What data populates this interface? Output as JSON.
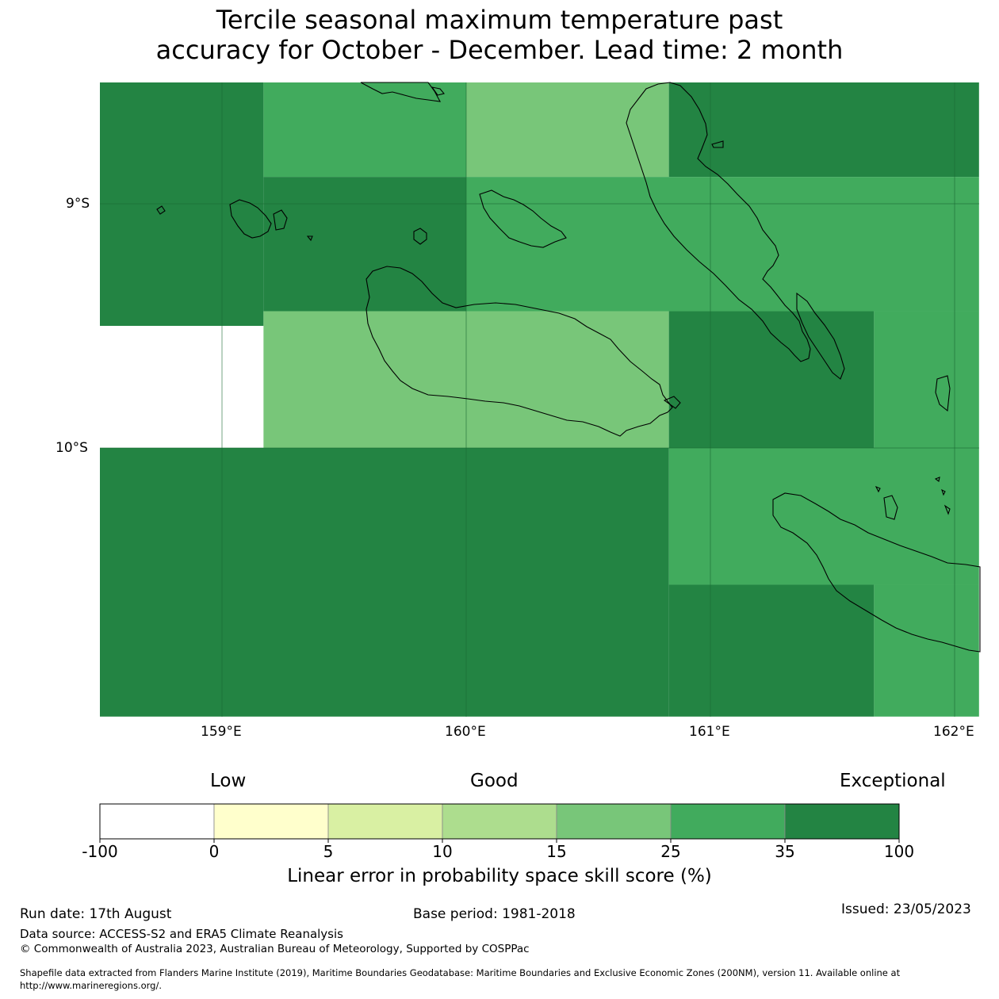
{
  "title_line1": "Tercile seasonal maximum temperature past",
  "title_line2": "accuracy for October - December. Lead time: 2 month",
  "map": {
    "lat_labels": [
      "9°S",
      "10°S"
    ],
    "lon_labels": [
      "159°E",
      "160°E",
      "161°E",
      "162°E"
    ],
    "legend_colors": {
      "lt0": "#ffffff",
      "0-5": "#ffffcc",
      "5-10": "#d9f0a3",
      "10-15": "#addd8e",
      "15-25": "#78c679",
      "25-35": "#41ab5d",
      "35-100": "#238443"
    },
    "grid_cells": [
      {
        "lon": [
          158.5,
          159.17
        ],
        "lat": [
          -8.5,
          -9.5
        ],
        "cls": "35-100"
      },
      {
        "lon": [
          159.17,
          160.0
        ],
        "lat": [
          -8.5,
          -8.89
        ],
        "cls": "25-35"
      },
      {
        "lon": [
          160.0,
          160.83
        ],
        "lat": [
          -8.5,
          -8.89
        ],
        "cls": "15-25"
      },
      {
        "lon": [
          160.83,
          162.1
        ],
        "lat": [
          -8.5,
          -8.89
        ],
        "cls": "35-100"
      },
      {
        "lon": [
          159.17,
          160.0
        ],
        "lat": [
          -8.89,
          -9.44
        ],
        "cls": "35-100"
      },
      {
        "lon": [
          160.0,
          162.1
        ],
        "lat": [
          -8.89,
          -9.44
        ],
        "cls": "25-35"
      },
      {
        "lon": [
          159.17,
          160.83
        ],
        "lat": [
          -9.44,
          -10.0
        ],
        "cls": "15-25"
      },
      {
        "lon": [
          160.83,
          161.67
        ],
        "lat": [
          -9.44,
          -10.0
        ],
        "cls": "35-100"
      },
      {
        "lon": [
          161.67,
          162.1
        ],
        "lat": [
          -9.44,
          -10.0
        ],
        "cls": "25-35"
      },
      {
        "lon": [
          158.5,
          160.83
        ],
        "lat": [
          -10.0,
          -11.1
        ],
        "cls": "35-100"
      },
      {
        "lon": [
          160.83,
          162.1
        ],
        "lat": [
          -10.0,
          -10.56
        ],
        "cls": "25-35"
      },
      {
        "lon": [
          160.83,
          161.67
        ],
        "lat": [
          -10.56,
          -11.1
        ],
        "cls": "35-100"
      },
      {
        "lon": [
          161.67,
          162.1
        ],
        "lat": [
          -10.56,
          -11.1
        ],
        "cls": "25-35"
      }
    ]
  },
  "legend": {
    "categories": [
      "Low",
      "Good",
      "Exceptional"
    ],
    "bins": [
      {
        "range": "-100 to 0",
        "color": "#ffffff"
      },
      {
        "range": "0 to 5",
        "color": "#ffffcc"
      },
      {
        "range": "5 to 10",
        "color": "#d9f0a3"
      },
      {
        "range": "10 to 15",
        "color": "#addd8e"
      },
      {
        "range": "15 to 25",
        "color": "#78c679"
      },
      {
        "range": "25 to 35",
        "color": "#41ab5d"
      },
      {
        "range": "35 to 100",
        "color": "#238443"
      }
    ],
    "ticks": [
      "-100",
      "0",
      "5",
      "10",
      "15",
      "25",
      "35",
      "100"
    ],
    "label": "Linear error in probability space skill score (%)"
  },
  "footer": {
    "run_date": "Run date: 17th August",
    "base_period": "Base period: 1981-2018",
    "issued": "Issued: 23/05/2023",
    "data_source": "Data source: ACCESS-S2 and ERA5 Climate Reanalysis",
    "copyright": "© Commonwealth of Australia 2023, Australian Bureau of Meteorology, Supported by COSPPac",
    "shapefile_line1": "Shapefile data extracted from Flanders Marine Institute (2019), Maritime Boundaries Geodatabase: Maritime Boundaries and Exclusive Economic Zones (200NM), version 11. Available online at",
    "shapefile_line2": "http://www.marineregions.org/."
  }
}
